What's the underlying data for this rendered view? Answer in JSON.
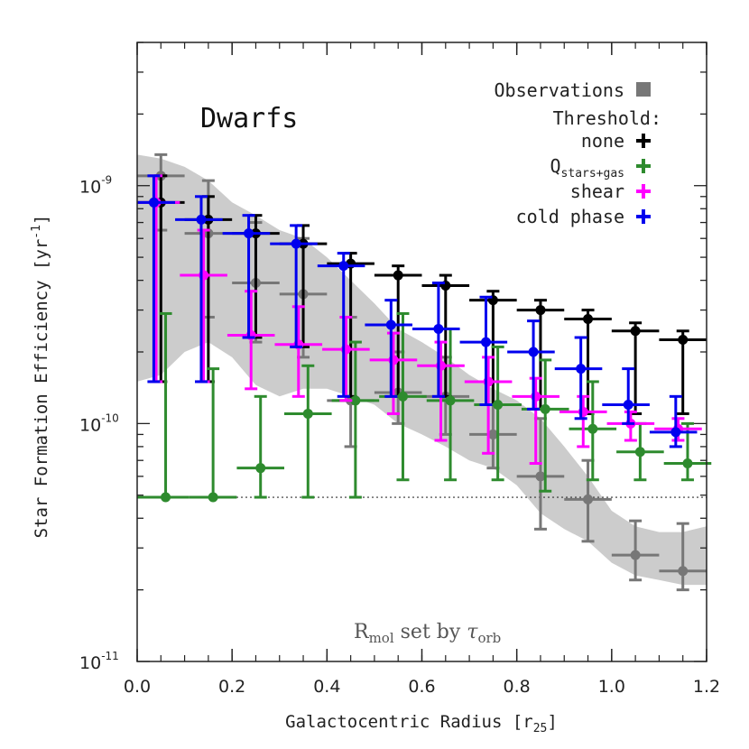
{
  "chart_data": {
    "type": "scatter",
    "title": "Dwarfs",
    "xlabel": "Galactocentric Radius [r",
    "xlabel_sub": "25",
    "xlabel_end": "]",
    "ylabel": "Star Formation Efficiency [yr",
    "ylabel_sup": "-1",
    "ylabel_end": "]",
    "xlim": [
      0.0,
      1.2
    ],
    "ylim": [
      1e-11,
      4e-09
    ],
    "yscale": "log",
    "x_ticks": [
      "0.0",
      "0.2",
      "0.4",
      "0.6",
      "0.8",
      "1.0",
      "1.2"
    ],
    "y_ticks": [
      {
        "value": 1e-11,
        "base": "10",
        "exp": "-11"
      },
      {
        "value": 1e-10,
        "base": "10",
        "exp": "-10"
      },
      {
        "value": 1e-09,
        "base": "10",
        "exp": "-9"
      }
    ],
    "reference_line": {
      "y": 4.9e-11,
      "style": "dotted"
    },
    "annotation": {
      "main": "R",
      "sub1": "mol",
      "middle": " set by ",
      "tau": "τ",
      "sub2": "orb"
    },
    "legend": {
      "position": "top-right",
      "observations": "Observations",
      "threshold_title": "Threshold:",
      "items": [
        {
          "name": "none",
          "color": "#000000"
        },
        {
          "name": "Q",
          "sub": "stars+gas",
          "color": "#2e8b2e"
        },
        {
          "name": "shear",
          "color": "#ff00ff"
        },
        {
          "name": "cold phase",
          "color": "#0000ee"
        }
      ]
    },
    "observations_band": {
      "color": "#cccccc",
      "x": [
        0.0,
        0.05,
        0.1,
        0.15,
        0.2,
        0.25,
        0.3,
        0.35,
        0.4,
        0.45,
        0.5,
        0.55,
        0.6,
        0.65,
        0.7,
        0.75,
        0.8,
        0.85,
        0.9,
        0.95,
        1.0,
        1.05,
        1.1,
        1.15,
        1.2
      ],
      "upper": [
        1.35e-09,
        1.3e-09,
        1.2e-09,
        1.05e-09,
        8.5e-10,
        7.5e-10,
        6.5e-10,
        6e-10,
        5e-10,
        4e-10,
        3.2e-10,
        2.5e-10,
        2.2e-10,
        1.9e-10,
        1.6e-10,
        1.4e-10,
        1.25e-10,
        1.05e-10,
        8e-11,
        6e-11,
        4.3e-11,
        3.7e-11,
        3.5e-11,
        3.5e-11,
        3.7e-11
      ],
      "lower": [
        1.5e-10,
        1.6e-10,
        2e-10,
        2.2e-10,
        1.9e-10,
        1.45e-10,
        1.3e-10,
        1.4e-10,
        1.4e-10,
        1.3e-10,
        1.2e-10,
        1e-10,
        9e-11,
        8e-11,
        7e-11,
        6.5e-11,
        5.5e-11,
        4.2e-11,
        3.6e-11,
        3.2e-11,
        2.6e-11,
        2.3e-11,
        2.2e-11,
        2.1e-11,
        2.1e-11
      ]
    },
    "series": [
      {
        "name": "observations",
        "color": "#777777",
        "points": [
          {
            "x": 0.05,
            "y": 1.1e-09,
            "xlo": 0.0,
            "xhi": 0.1,
            "ylo": 6.5e-10,
            "yhi": 1.35e-09
          },
          {
            "x": 0.15,
            "y": 6.3e-10,
            "xlo": 0.1,
            "xhi": 0.2,
            "ylo": 2.8e-10,
            "yhi": 1.05e-09
          },
          {
            "x": 0.25,
            "y": 3.9e-10,
            "xlo": 0.2,
            "xhi": 0.3,
            "ylo": 2.2e-10,
            "yhi": 7e-10
          },
          {
            "x": 0.35,
            "y": 3.5e-10,
            "xlo": 0.3,
            "xhi": 0.4,
            "ylo": 1.9e-10,
            "yhi": 6e-10
          },
          {
            "x": 0.45,
            "y": 1.25e-10,
            "xlo": 0.4,
            "xhi": 0.5,
            "ylo": 8e-11,
            "yhi": 2.8e-10
          },
          {
            "x": 0.55,
            "y": 1.35e-10,
            "xlo": 0.5,
            "xhi": 0.6,
            "ylo": 1e-10,
            "yhi": 2e-10
          },
          {
            "x": 0.65,
            "y": 1.3e-10,
            "xlo": 0.6,
            "xhi": 0.7,
            "ylo": 9e-11,
            "yhi": 1.9e-10
          },
          {
            "x": 0.75,
            "y": 9e-11,
            "xlo": 0.7,
            "xhi": 0.8,
            "ylo": 6.5e-11,
            "yhi": 1.5e-10
          },
          {
            "x": 0.85,
            "y": 6e-11,
            "xlo": 0.8,
            "xhi": 0.9,
            "ylo": 3.6e-11,
            "yhi": 1.05e-10
          },
          {
            "x": 0.95,
            "y": 4.8e-11,
            "xlo": 0.9,
            "xhi": 1.0,
            "ylo": 3.2e-11,
            "yhi": 7e-11
          },
          {
            "x": 1.05,
            "y": 2.8e-11,
            "xlo": 1.0,
            "xhi": 1.1,
            "ylo": 2.2e-11,
            "yhi": 3.9e-11
          },
          {
            "x": 1.15,
            "y": 2.4e-11,
            "xlo": 1.1,
            "xhi": 1.2,
            "ylo": 2e-11,
            "yhi": 3.8e-11
          }
        ]
      },
      {
        "name": "none",
        "color": "#000000",
        "points": [
          {
            "x": 0.05,
            "y": 8.5e-10,
            "xlo": 0.0,
            "xhi": 0.1,
            "ylo": 1.5e-10,
            "yhi": 1.1e-09
          },
          {
            "x": 0.15,
            "y": 7.2e-10,
            "xlo": 0.1,
            "xhi": 0.2,
            "ylo": 1.5e-10,
            "yhi": 9e-10
          },
          {
            "x": 0.25,
            "y": 6.3e-10,
            "xlo": 0.2,
            "xhi": 0.3,
            "ylo": 2.3e-10,
            "yhi": 7.5e-10
          },
          {
            "x": 0.35,
            "y": 5.7e-10,
            "xlo": 0.3,
            "xhi": 0.4,
            "ylo": 2.1e-10,
            "yhi": 6.8e-10
          },
          {
            "x": 0.45,
            "y": 4.7e-10,
            "xlo": 0.4,
            "xhi": 0.5,
            "ylo": 1.3e-10,
            "yhi": 5.2e-10
          },
          {
            "x": 0.55,
            "y": 4.2e-10,
            "xlo": 0.5,
            "xhi": 0.6,
            "ylo": 1.3e-10,
            "yhi": 4.6e-10
          },
          {
            "x": 0.65,
            "y": 3.8e-10,
            "xlo": 0.6,
            "xhi": 0.7,
            "ylo": 1.3e-10,
            "yhi": 4.2e-10
          },
          {
            "x": 0.75,
            "y": 3.3e-10,
            "xlo": 0.7,
            "xhi": 0.8,
            "ylo": 1.2e-10,
            "yhi": 3.6e-10
          },
          {
            "x": 0.85,
            "y": 3e-10,
            "xlo": 0.8,
            "xhi": 0.9,
            "ylo": 1.15e-10,
            "yhi": 3.3e-10
          },
          {
            "x": 0.95,
            "y": 2.75e-10,
            "xlo": 0.9,
            "xhi": 1.0,
            "ylo": 1.1e-10,
            "yhi": 3e-10
          },
          {
            "x": 1.05,
            "y": 2.45e-10,
            "xlo": 1.0,
            "xhi": 1.1,
            "ylo": 1.1e-10,
            "yhi": 2.65e-10
          },
          {
            "x": 1.15,
            "y": 2.25e-10,
            "xlo": 1.1,
            "xhi": 1.2,
            "ylo": 1.1e-10,
            "yhi": 2.45e-10
          }
        ]
      },
      {
        "name": "Q stars+gas",
        "color": "#2e8b2e",
        "points": [
          {
            "x": 0.06,
            "y": 4.9e-11,
            "xlo": 0.0,
            "xhi": 0.11,
            "ylo": 4.9e-11,
            "yhi": 2.9e-10
          },
          {
            "x": 0.16,
            "y": 4.9e-11,
            "xlo": 0.11,
            "xhi": 0.21,
            "ylo": 4.9e-11,
            "yhi": 1.7e-10
          },
          {
            "x": 0.26,
            "y": 6.5e-11,
            "xlo": 0.21,
            "xhi": 0.31,
            "ylo": 4.9e-11,
            "yhi": 1.3e-10
          },
          {
            "x": 0.36,
            "y": 1.1e-10,
            "xlo": 0.31,
            "xhi": 0.41,
            "ylo": 4.9e-11,
            "yhi": 1.75e-10
          },
          {
            "x": 0.46,
            "y": 1.25e-10,
            "xlo": 0.41,
            "xhi": 0.51,
            "ylo": 4.9e-11,
            "yhi": 2.2e-10
          },
          {
            "x": 0.56,
            "y": 1.3e-10,
            "xlo": 0.51,
            "xhi": 0.61,
            "ylo": 5.8e-11,
            "yhi": 2.9e-10
          },
          {
            "x": 0.66,
            "y": 1.25e-10,
            "xlo": 0.61,
            "xhi": 0.71,
            "ylo": 5.8e-11,
            "yhi": 2.5e-10
          },
          {
            "x": 0.76,
            "y": 1.2e-10,
            "xlo": 0.71,
            "xhi": 0.81,
            "ylo": 5.8e-11,
            "yhi": 2.1e-10
          },
          {
            "x": 0.86,
            "y": 1.15e-10,
            "xlo": 0.81,
            "xhi": 0.91,
            "ylo": 5.2e-11,
            "yhi": 1.85e-10
          },
          {
            "x": 0.96,
            "y": 9.5e-11,
            "xlo": 0.91,
            "xhi": 1.01,
            "ylo": 5.8e-11,
            "yhi": 1.5e-10
          },
          {
            "x": 1.06,
            "y": 7.6e-11,
            "xlo": 1.01,
            "xhi": 1.11,
            "ylo": 5.8e-11,
            "yhi": 1e-10
          },
          {
            "x": 1.16,
            "y": 6.8e-11,
            "xlo": 1.11,
            "xhi": 1.21,
            "ylo": 5.8e-11,
            "yhi": 1e-10
          }
        ]
      },
      {
        "name": "shear",
        "color": "#ff00ff",
        "points": [
          {
            "x": 0.04,
            "y": 8.5e-10,
            "xlo": 0.0,
            "xhi": 0.09,
            "ylo": 1.5e-10,
            "yhi": 1.1e-09
          },
          {
            "x": 0.14,
            "y": 4.2e-10,
            "xlo": 0.09,
            "xhi": 0.19,
            "ylo": 1.5e-10,
            "yhi": 6.5e-10
          },
          {
            "x": 0.24,
            "y": 2.35e-10,
            "xlo": 0.19,
            "xhi": 0.29,
            "ylo": 1.4e-10,
            "yhi": 3.6e-10
          },
          {
            "x": 0.34,
            "y": 2.15e-10,
            "xlo": 0.29,
            "xhi": 0.39,
            "ylo": 1.3e-10,
            "yhi": 3.1e-10
          },
          {
            "x": 0.44,
            "y": 2.05e-10,
            "xlo": 0.39,
            "xhi": 0.49,
            "ylo": 1.25e-10,
            "yhi": 2.8e-10
          },
          {
            "x": 0.54,
            "y": 1.85e-10,
            "xlo": 0.49,
            "xhi": 0.59,
            "ylo": 1.1e-10,
            "yhi": 2.4e-10
          },
          {
            "x": 0.64,
            "y": 1.75e-10,
            "xlo": 0.59,
            "xhi": 0.69,
            "ylo": 8.5e-11,
            "yhi": 2.2e-10
          },
          {
            "x": 0.74,
            "y": 1.5e-10,
            "xlo": 0.69,
            "xhi": 0.79,
            "ylo": 7.5e-11,
            "yhi": 1.9e-10
          },
          {
            "x": 0.84,
            "y": 1.3e-10,
            "xlo": 0.79,
            "xhi": 0.89,
            "ylo": 6.8e-11,
            "yhi": 1.55e-10
          },
          {
            "x": 0.94,
            "y": 1.12e-10,
            "xlo": 0.89,
            "xhi": 0.99,
            "ylo": 8e-11,
            "yhi": 1.3e-10
          },
          {
            "x": 1.04,
            "y": 1e-10,
            "xlo": 0.99,
            "xhi": 1.09,
            "ylo": 8.5e-11,
            "yhi": 1.12e-10
          },
          {
            "x": 1.14,
            "y": 9.5e-11,
            "xlo": 1.09,
            "xhi": 1.19,
            "ylo": 8.5e-11,
            "yhi": 1.05e-10
          }
        ]
      },
      {
        "name": "cold phase",
        "color": "#0000ee",
        "points": [
          {
            "x": 0.035,
            "y": 8.5e-10,
            "xlo": 0.0,
            "xhi": 0.08,
            "ylo": 1.5e-10,
            "yhi": 1.1e-09
          },
          {
            "x": 0.135,
            "y": 7.2e-10,
            "xlo": 0.08,
            "xhi": 0.18,
            "ylo": 1.5e-10,
            "yhi": 9e-10
          },
          {
            "x": 0.235,
            "y": 6.3e-10,
            "xlo": 0.18,
            "xhi": 0.28,
            "ylo": 2.3e-10,
            "yhi": 7.5e-10
          },
          {
            "x": 0.335,
            "y": 5.7e-10,
            "xlo": 0.28,
            "xhi": 0.38,
            "ylo": 2.1e-10,
            "yhi": 6.8e-10
          },
          {
            "x": 0.435,
            "y": 4.6e-10,
            "xlo": 0.38,
            "xhi": 0.48,
            "ylo": 1.3e-10,
            "yhi": 5.2e-10
          },
          {
            "x": 0.535,
            "y": 2.6e-10,
            "xlo": 0.48,
            "xhi": 0.58,
            "ylo": 1.3e-10,
            "yhi": 3.3e-10
          },
          {
            "x": 0.635,
            "y": 2.5e-10,
            "xlo": 0.58,
            "xhi": 0.68,
            "ylo": 1.3e-10,
            "yhi": 3.9e-10
          },
          {
            "x": 0.735,
            "y": 2.2e-10,
            "xlo": 0.68,
            "xhi": 0.78,
            "ylo": 1.2e-10,
            "yhi": 3.4e-10
          },
          {
            "x": 0.835,
            "y": 2e-10,
            "xlo": 0.78,
            "xhi": 0.88,
            "ylo": 1.15e-10,
            "yhi": 2.7e-10
          },
          {
            "x": 0.935,
            "y": 1.7e-10,
            "xlo": 0.88,
            "xhi": 0.98,
            "ylo": 1.05e-10,
            "yhi": 2.3e-10
          },
          {
            "x": 1.035,
            "y": 1.2e-10,
            "xlo": 0.98,
            "xhi": 1.08,
            "ylo": 1e-10,
            "yhi": 1.7e-10
          },
          {
            "x": 1.135,
            "y": 9.2e-11,
            "xlo": 1.08,
            "xhi": 1.18,
            "ylo": 8e-11,
            "yhi": 1.3e-10
          }
        ]
      }
    ]
  }
}
